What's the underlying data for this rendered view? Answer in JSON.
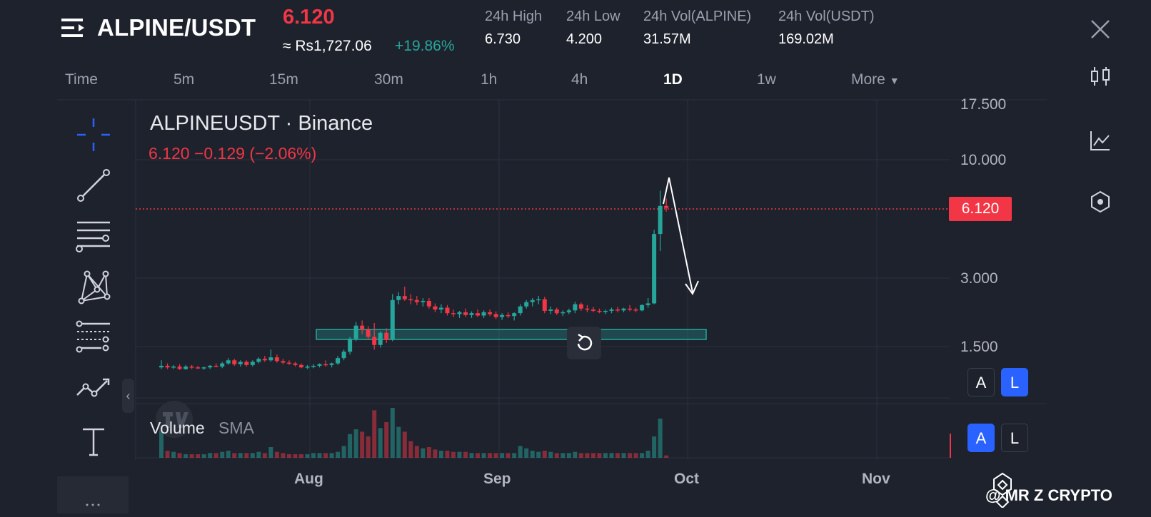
{
  "header": {
    "pair": "ALPINE/USDT",
    "price": "6.120",
    "approx_price": "≈ Rs1,727.06",
    "change_pct": "+19.86%",
    "stats": [
      {
        "label": "24h High",
        "value": "6.730"
      },
      {
        "label": "24h Low",
        "value": "4.200"
      },
      {
        "label": "24h Vol(ALPINE)",
        "value": "31.57M"
      },
      {
        "label": "24h Vol(USDT)",
        "value": "169.02M"
      }
    ]
  },
  "timeframes": [
    "Time",
    "5m",
    "15m",
    "30m",
    "1h",
    "4h",
    "1D",
    "1w",
    "More"
  ],
  "active_timeframe": "1D",
  "chart": {
    "title": "ALPINEUSDT · Binance",
    "subtitle": "6.120  −0.129 (−2.06%)",
    "price_tag": "6.120",
    "volume_label": "Volume",
    "volume_sma_label": "SMA",
    "price_scale_buttons": {
      "a": "A",
      "l": "L"
    },
    "volume_scale_buttons": {
      "a": "A",
      "l": "L"
    },
    "collapse_glyph": "‹"
  },
  "watermark": "@ MR Z CRYPTO",
  "colors": {
    "up": "#26a69a",
    "down": "#f23645",
    "accent": "#2962ff",
    "bg": "#1e222d"
  },
  "icons": [
    "menu-icon",
    "close-icon",
    "crosshair-icon",
    "trend-line-icon",
    "parallel-channel-icon",
    "pattern-icon",
    "fib-icon",
    "forecast-icon",
    "text-icon",
    "candles-icon",
    "indicators-icon",
    "settings-hex-icon",
    "reset-icon"
  ],
  "chart_data": {
    "type": "candlestick",
    "y_scale": "log",
    "y_ticks": [
      "17.500",
      "10.000",
      "3.000",
      "1.500"
    ],
    "x_ticks": [
      "Aug",
      "Sep",
      "Oct",
      "Nov"
    ],
    "last_price": 6.12,
    "support_zone": [
      1.75,
      1.9
    ],
    "candles": [
      [
        1.21,
        1.3,
        1.19,
        1.23
      ],
      [
        1.23,
        1.26,
        1.19,
        1.21
      ],
      [
        1.21,
        1.24,
        1.19,
        1.22
      ],
      [
        1.22,
        1.25,
        1.18,
        1.19
      ],
      [
        1.19,
        1.24,
        1.18,
        1.22
      ],
      [
        1.22,
        1.24,
        1.19,
        1.21
      ],
      [
        1.21,
        1.23,
        1.19,
        1.2
      ],
      [
        1.2,
        1.22,
        1.18,
        1.21
      ],
      [
        1.21,
        1.24,
        1.19,
        1.23
      ],
      [
        1.23,
        1.26,
        1.21,
        1.22
      ],
      [
        1.22,
        1.28,
        1.2,
        1.26
      ],
      [
        1.26,
        1.33,
        1.24,
        1.3
      ],
      [
        1.3,
        1.32,
        1.23,
        1.25
      ],
      [
        1.25,
        1.3,
        1.22,
        1.28
      ],
      [
        1.28,
        1.3,
        1.22,
        1.24
      ],
      [
        1.24,
        1.3,
        1.22,
        1.28
      ],
      [
        1.28,
        1.34,
        1.26,
        1.32
      ],
      [
        1.32,
        1.36,
        1.28,
        1.3
      ],
      [
        1.3,
        1.45,
        1.28,
        1.34
      ],
      [
        1.34,
        1.38,
        1.27,
        1.29
      ],
      [
        1.29,
        1.32,
        1.25,
        1.27
      ],
      [
        1.27,
        1.3,
        1.24,
        1.26
      ],
      [
        1.26,
        1.28,
        1.22,
        1.24
      ],
      [
        1.24,
        1.26,
        1.2,
        1.21
      ],
      [
        1.21,
        1.24,
        1.19,
        1.22
      ],
      [
        1.22,
        1.25,
        1.2,
        1.23
      ],
      [
        1.23,
        1.26,
        1.21,
        1.25
      ],
      [
        1.25,
        1.3,
        1.22,
        1.24
      ],
      [
        1.24,
        1.27,
        1.21,
        1.26
      ],
      [
        1.26,
        1.36,
        1.24,
        1.33
      ],
      [
        1.33,
        1.45,
        1.3,
        1.42
      ],
      [
        1.42,
        1.65,
        1.38,
        1.62
      ],
      [
        1.62,
        1.92,
        1.58,
        1.85
      ],
      [
        1.85,
        1.95,
        1.7,
        1.78
      ],
      [
        1.78,
        1.84,
        1.6,
        1.65
      ],
      [
        1.65,
        1.9,
        1.45,
        1.52
      ],
      [
        1.52,
        1.75,
        1.48,
        1.72
      ],
      [
        1.72,
        1.8,
        1.55,
        1.6
      ],
      [
        1.6,
        2.55,
        1.58,
        2.4
      ],
      [
        2.4,
        2.6,
        2.3,
        2.5
      ],
      [
        2.5,
        2.75,
        2.38,
        2.42
      ],
      [
        2.42,
        2.55,
        2.3,
        2.4
      ],
      [
        2.4,
        2.5,
        2.28,
        2.35
      ],
      [
        2.35,
        2.45,
        2.25,
        2.38
      ],
      [
        2.38,
        2.45,
        2.2,
        2.25
      ],
      [
        2.25,
        2.32,
        2.12,
        2.18
      ],
      [
        2.18,
        2.3,
        2.1,
        2.22
      ],
      [
        2.22,
        2.28,
        2.05,
        2.1
      ],
      [
        2.1,
        2.18,
        2.02,
        2.08
      ],
      [
        2.08,
        2.15,
        2.0,
        2.12
      ],
      [
        2.12,
        2.2,
        2.02,
        2.06
      ],
      [
        2.06,
        2.14,
        2.0,
        2.1
      ],
      [
        2.1,
        2.18,
        2.02,
        2.05
      ],
      [
        2.05,
        2.16,
        2.0,
        2.12
      ],
      [
        2.12,
        2.18,
        2.04,
        2.08
      ],
      [
        2.08,
        2.14,
        1.98,
        2.02
      ],
      [
        2.02,
        2.1,
        1.96,
        2.06
      ],
      [
        2.06,
        2.12,
        2.0,
        2.04
      ],
      [
        2.04,
        2.12,
        1.95,
        2.1
      ],
      [
        2.1,
        2.3,
        2.05,
        2.25
      ],
      [
        2.25,
        2.4,
        2.2,
        2.35
      ],
      [
        2.35,
        2.45,
        2.25,
        2.4
      ],
      [
        2.4,
        2.5,
        2.3,
        2.42
      ],
      [
        2.42,
        2.48,
        2.1,
        2.15
      ],
      [
        2.15,
        2.25,
        2.08,
        2.18
      ],
      [
        2.18,
        2.22,
        2.06,
        2.1
      ],
      [
        2.1,
        2.16,
        2.04,
        2.12
      ],
      [
        2.12,
        2.2,
        2.08,
        2.16
      ],
      [
        2.16,
        2.36,
        2.1,
        2.3
      ],
      [
        2.3,
        2.34,
        2.15,
        2.2
      ],
      [
        2.2,
        2.28,
        2.12,
        2.18
      ],
      [
        2.18,
        2.24,
        2.12,
        2.15
      ],
      [
        2.15,
        2.2,
        2.1,
        2.13
      ],
      [
        2.13,
        2.18,
        2.08,
        2.15
      ],
      [
        2.15,
        2.22,
        2.1,
        2.18
      ],
      [
        2.18,
        2.24,
        2.12,
        2.16
      ],
      [
        2.16,
        2.22,
        2.12,
        2.2
      ],
      [
        2.2,
        2.28,
        2.14,
        2.18
      ],
      [
        2.18,
        2.22,
        2.12,
        2.16
      ],
      [
        2.16,
        2.3,
        2.14,
        2.28
      ],
      [
        2.28,
        2.45,
        2.22,
        2.32
      ],
      [
        2.32,
        4.9,
        2.3,
        4.7
      ],
      [
        4.7,
        7.3,
        3.95,
        6.25
      ],
      [
        6.25,
        6.73,
        5.9,
        6.12
      ]
    ],
    "volumes": [
      28,
      6,
      5,
      4,
      3,
      3,
      3,
      3,
      4,
      4,
      5,
      6,
      4,
      4,
      4,
      4,
      5,
      4,
      9,
      5,
      4,
      3,
      3,
      3,
      3,
      4,
      4,
      4,
      4,
      5,
      10,
      20,
      24,
      22,
      18,
      40,
      25,
      30,
      42,
      26,
      22,
      14,
      10,
      8,
      9,
      7,
      6,
      6,
      5,
      5,
      5,
      4,
      4,
      4,
      4,
      4,
      4,
      4,
      4,
      10,
      8,
      6,
      5,
      6,
      5,
      4,
      4,
      4,
      5,
      4,
      4,
      4,
      4,
      4,
      4,
      4,
      4,
      4,
      4,
      4,
      6,
      18,
      33,
      2
    ]
  }
}
